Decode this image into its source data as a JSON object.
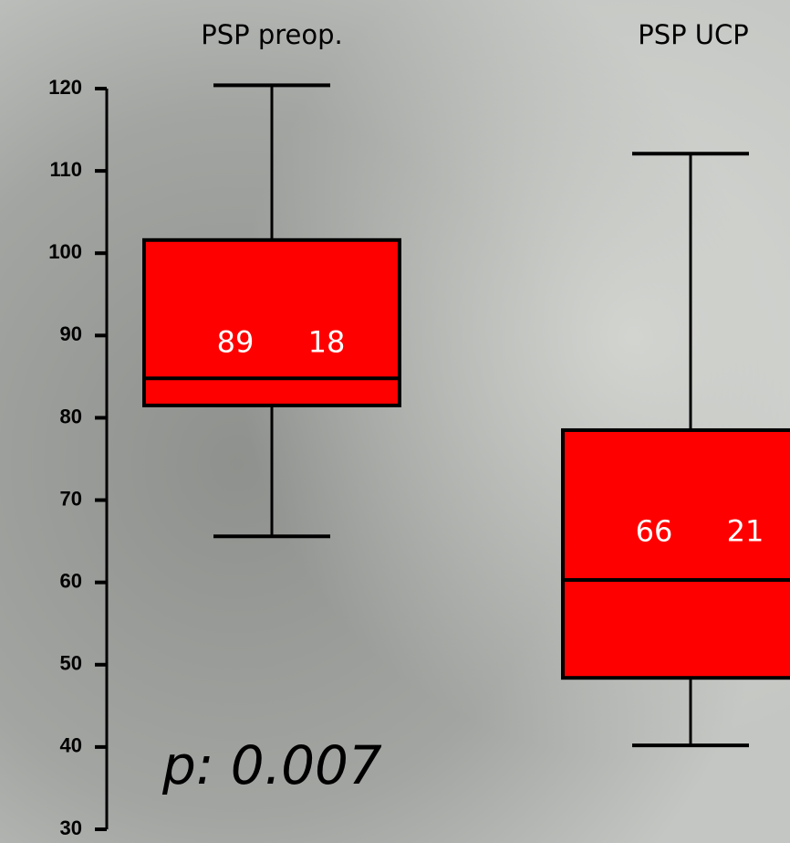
{
  "chart_data": {
    "type": "box",
    "categories": [
      "PSP preop.",
      "PSP UCP"
    ],
    "whisker_low": [
      65.6,
      40.2
    ],
    "q1": [
      81.5,
      48.4
    ],
    "median": [
      84.8,
      60.3
    ],
    "q3": [
      101.6,
      78.5
    ],
    "whisker_high": [
      120.4,
      112.1
    ],
    "means": [
      89,
      66
    ],
    "sds": [
      18,
      21
    ],
    "color": "#ff0000",
    "ylim": [
      30,
      120
    ],
    "yticks": [
      30,
      40,
      50,
      60,
      70,
      80,
      90,
      100,
      110,
      120
    ],
    "annotation": "p: 0.007"
  }
}
